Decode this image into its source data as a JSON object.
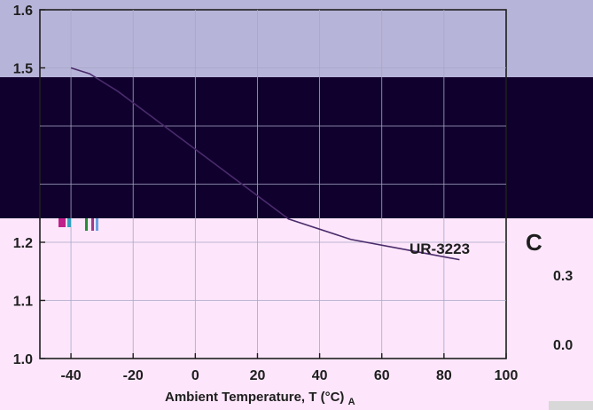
{
  "colors": {
    "band_top": "#b7b4d9",
    "band_dark": "#10002e",
    "band_bottom": "#fde6fb",
    "grid": "#a7a7c6",
    "axis": "#1e1e1e",
    "line": "#4a2b6b",
    "tint": "#f3c6f3"
  },
  "chart_data": {
    "type": "line",
    "xlabel": "Ambient Temperature, T (°C)",
    "xlabel_sub": "A",
    "ylabel": "",
    "xlim": [
      -50,
      100
    ],
    "ylim": [
      1.0,
      1.6
    ],
    "x_ticks": [
      -40,
      -20,
      0,
      20,
      40,
      60,
      80,
      100
    ],
    "y_ticks": [
      "1.0",
      "1.1",
      "1.2",
      "1.5",
      "1.6"
    ],
    "y_tick_values": [
      1.0,
      1.1,
      1.2,
      1.5,
      1.6
    ],
    "right_ticks": [
      "0.3",
      "0.0"
    ],
    "right_label_glyph": "C",
    "grid": true,
    "series": [
      {
        "label": "UR-3223",
        "x": [
          -40,
          -34,
          -25,
          -10,
          10,
          30,
          50,
          70,
          85
        ],
        "y": [
          1.5,
          1.49,
          1.46,
          1.4,
          1.32,
          1.24,
          1.205,
          1.185,
          1.17
        ]
      }
    ]
  }
}
